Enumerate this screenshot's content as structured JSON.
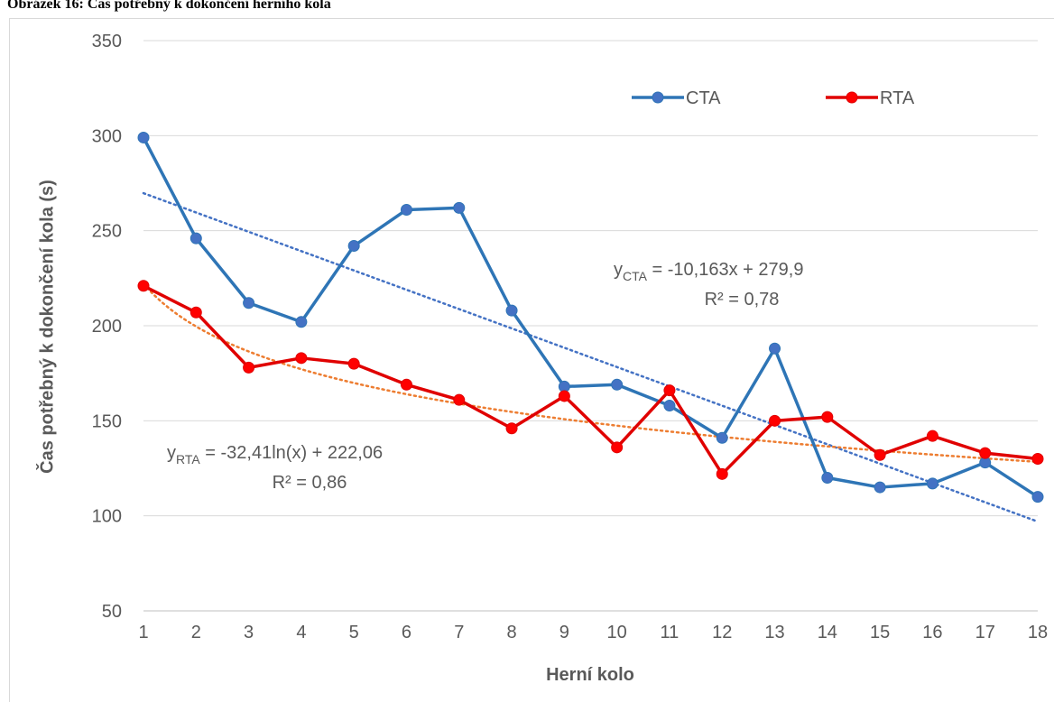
{
  "chart_data": {
    "type": "line",
    "title": "Obrázek 16: Čas potřebný k dokončení herního kola",
    "x_label": "Herní kolo",
    "y_label": "Čas potřebný k dokončení kola (s)",
    "x": [
      1,
      2,
      3,
      4,
      5,
      6,
      7,
      8,
      9,
      10,
      11,
      12,
      13,
      14,
      15,
      16,
      17,
      18
    ],
    "xlim": [
      1,
      18
    ],
    "xticks": [
      1,
      2,
      3,
      4,
      5,
      6,
      7,
      8,
      9,
      10,
      11,
      12,
      13,
      14,
      15,
      16,
      17,
      18
    ],
    "ylim": [
      50,
      350
    ],
    "yticks": [
      50,
      100,
      150,
      200,
      250,
      300,
      350
    ],
    "grid": true,
    "legend": "top-right",
    "series": [
      {
        "name": "CTA",
        "color": "#2e75b6",
        "marker_fill": "#4472c4",
        "values": [
          299,
          246,
          212,
          202,
          242,
          261,
          262,
          208,
          168,
          169,
          158,
          141,
          188,
          120,
          115,
          117,
          128,
          110
        ],
        "trendline": {
          "kind": "linear",
          "slope": -10.163,
          "intercept": 279.9,
          "color": "#4472c4",
          "equation": {
            "y": "y",
            "sub": "CTA",
            "rest": " = -10,163x + 279,9"
          },
          "r2": "R² = 0,78"
        }
      },
      {
        "name": "RTA",
        "color": "#e00000",
        "marker_fill": "#ff0000",
        "values": [
          221,
          207,
          178,
          183,
          180,
          169,
          161,
          146,
          163,
          136,
          166,
          122,
          150,
          152,
          132,
          142,
          133,
          130
        ],
        "trendline": {
          "kind": "log",
          "slope": -32.41,
          "intercept": 222.06,
          "color": "#ed7d31",
          "equation": {
            "y": "y",
            "sub": "RTA",
            "rest": " = -32,41ln(x) + 222,06"
          },
          "r2": "R² = 0,86"
        }
      }
    ]
  }
}
